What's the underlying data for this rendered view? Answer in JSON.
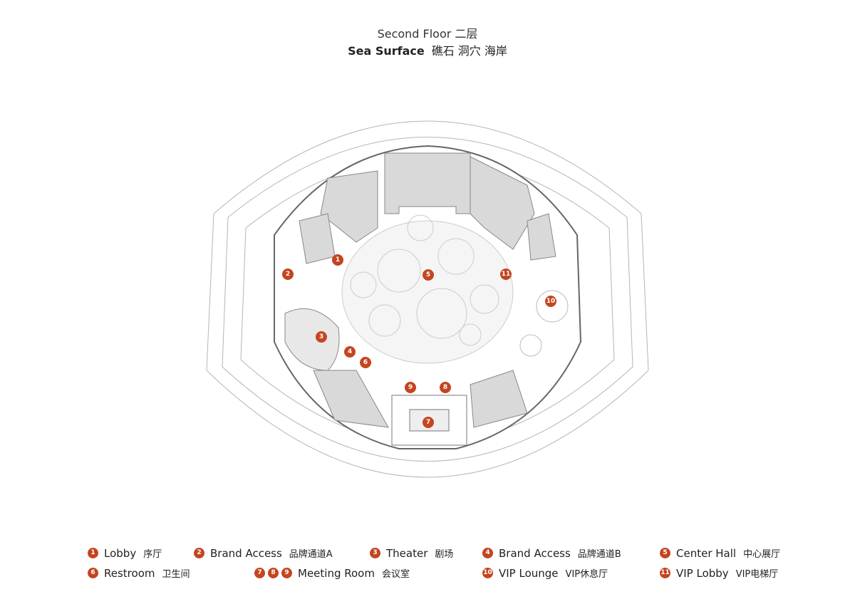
{
  "title": {
    "line1": "Second Floor  二层",
    "line2_en": "Sea Surface",
    "line2_zh": "礁石 洞穴 海岸"
  },
  "colors": {
    "marker": "#c4451f",
    "room_fill": "#d9d9d9",
    "line": "#9a9a9a"
  },
  "markers": [
    "1",
    "2",
    "3",
    "4",
    "5",
    "6",
    "7",
    "8",
    "9",
    "10",
    "11"
  ],
  "legend": [
    {
      "nums": [
        "1"
      ],
      "en": "Lobby",
      "zh": "序厅"
    },
    {
      "nums": [
        "2"
      ],
      "en": "Brand Access",
      "zh": "品牌通道A"
    },
    {
      "nums": [
        "3"
      ],
      "en": "Theater",
      "zh": "剧场"
    },
    {
      "nums": [
        "4"
      ],
      "en": "Brand Access",
      "zh": "品牌通道B"
    },
    {
      "nums": [
        "5"
      ],
      "en": "Center Hall",
      "zh": "中心展厅"
    },
    {
      "nums": [
        "6"
      ],
      "en": "Restroom",
      "zh": "卫生间"
    },
    {
      "nums": [
        "7",
        "8",
        "9"
      ],
      "en": "Meeting Room",
      "zh": "会议室"
    },
    {
      "nums": [
        "10"
      ],
      "en": "VIP Lounge",
      "zh": "VIP休息厅"
    },
    {
      "nums": [
        "11"
      ],
      "en": "VIP Lobby",
      "zh": "VIP电梯厅"
    }
  ]
}
